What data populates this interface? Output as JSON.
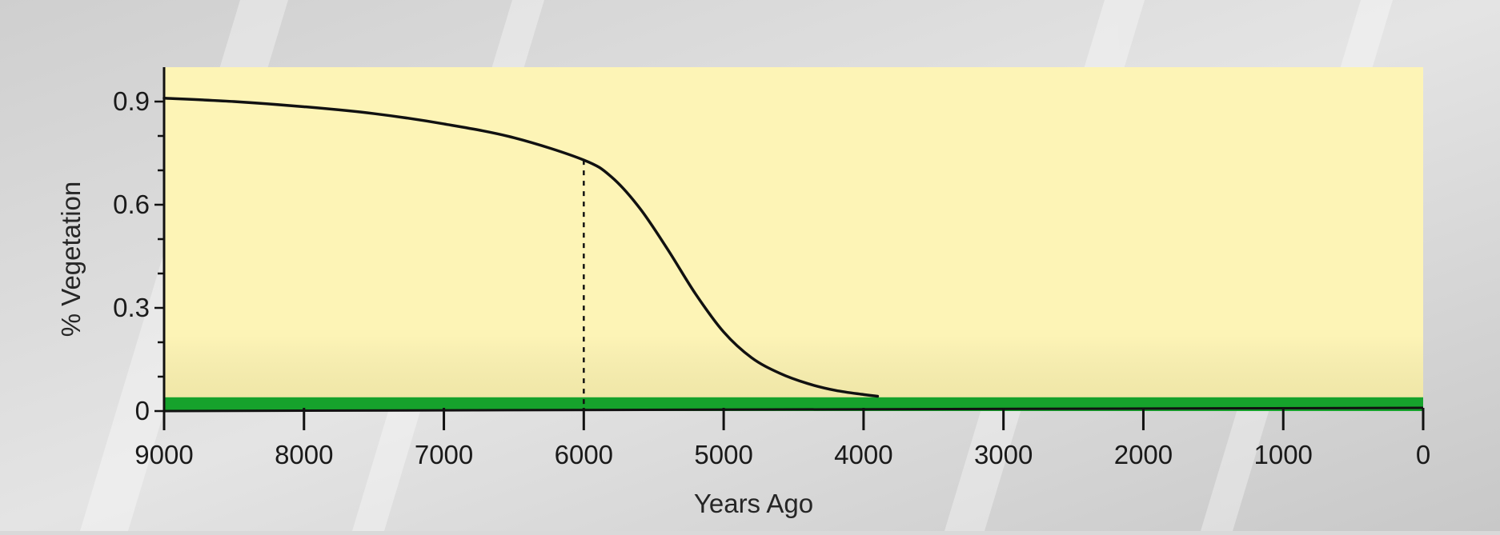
{
  "chart_data": {
    "type": "line",
    "xlabel": "Years Ago",
    "ylabel": "% Vegetation",
    "xlim": [
      9000,
      0
    ],
    "ylim": [
      0,
      1.0
    ],
    "x_reversed": true,
    "x_ticks": [
      9000,
      8000,
      7000,
      6000,
      5000,
      4000,
      3000,
      2000,
      1000,
      0
    ],
    "x_tick_labels": [
      "9000",
      "8000",
      "7000",
      "6000",
      "5000",
      "4000",
      "3000",
      "2000",
      "1000",
      "0"
    ],
    "y_ticks": [
      0,
      0.3,
      0.6,
      0.9
    ],
    "y_tick_labels": [
      "0",
      "0.3",
      "0.6",
      "0.9"
    ],
    "y_minor_tick_step": 0.1,
    "grid": false,
    "series": [
      {
        "color": "#111111",
        "points": [
          [
            9000,
            0.91
          ],
          [
            8500,
            0.9
          ],
          [
            8000,
            0.885
          ],
          [
            7500,
            0.865
          ],
          [
            7000,
            0.835
          ],
          [
            6500,
            0.795
          ],
          [
            6000,
            0.73
          ],
          [
            5800,
            0.68
          ],
          [
            5600,
            0.59
          ],
          [
            5400,
            0.47
          ],
          [
            5200,
            0.34
          ],
          [
            5000,
            0.23
          ],
          [
            4800,
            0.155
          ],
          [
            4600,
            0.11
          ],
          [
            4400,
            0.08
          ],
          [
            4200,
            0.06
          ],
          [
            4000,
            0.048
          ],
          [
            3900,
            0.043
          ]
        ]
      }
    ],
    "annotations": [
      {
        "type": "vertical-dashed-line",
        "x": 6000,
        "y_from": 0,
        "y_to": 0.73
      }
    ],
    "bands": [
      {
        "type": "horizontal-band",
        "y_from": 0.0,
        "y_to": 0.04,
        "color": "#16a22c"
      }
    ],
    "background_color": "#fdf4b6"
  }
}
